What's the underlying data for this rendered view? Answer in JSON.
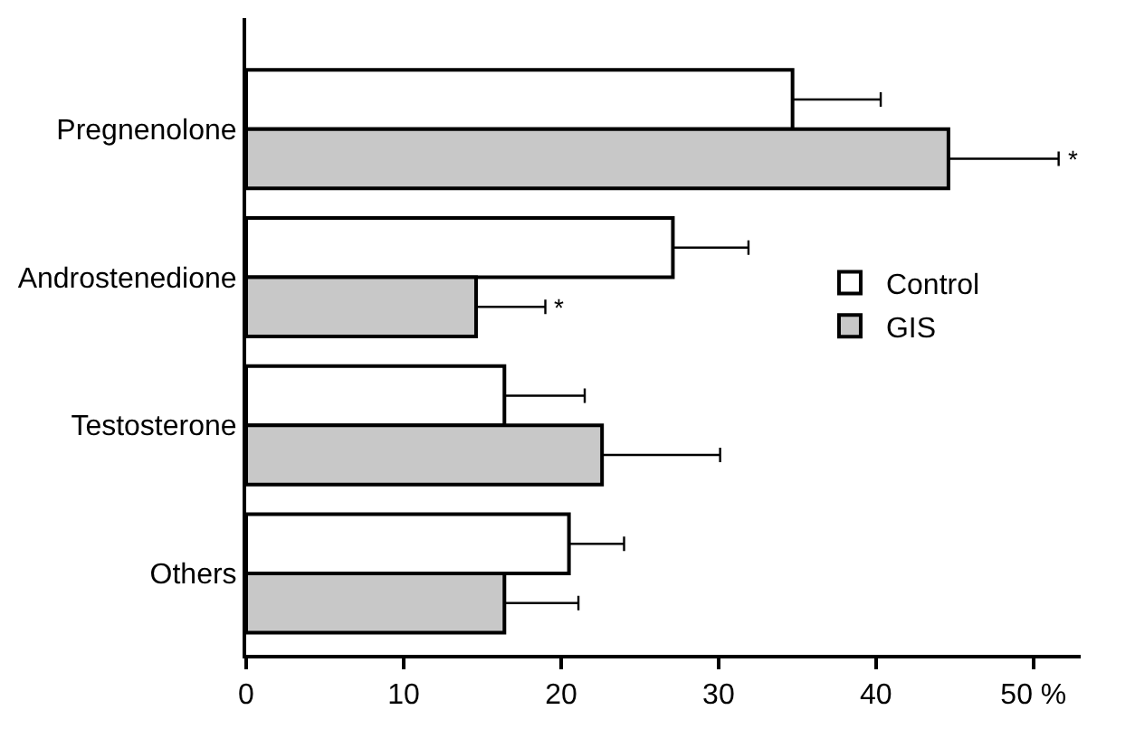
{
  "chart_data": {
    "type": "bar",
    "orientation": "horizontal",
    "categories": [
      "Pregnenolone",
      "Androstenedione",
      "Testosterone",
      "Others"
    ],
    "series": [
      {
        "name": "Control",
        "color": "#ffffff",
        "values": [
          34.7,
          27.1,
          16.4,
          20.5
        ],
        "errors": [
          [
            34.7,
            40.3
          ],
          [
            27.1,
            31.9
          ],
          [
            16.4,
            21.5
          ],
          [
            20.5,
            24.0
          ]
        ]
      },
      {
        "name": "GIS",
        "color": "#c8c8c8",
        "values": [
          44.6,
          14.6,
          22.6,
          16.4
        ],
        "errors": [
          [
            44.6,
            51.6
          ],
          [
            14.6,
            19.0
          ],
          [
            22.6,
            30.1
          ],
          [
            16.4,
            21.1
          ]
        ]
      }
    ],
    "xlim": [
      0,
      53
    ],
    "xticks": [
      0,
      10,
      20,
      30,
      40,
      {
        "value": 50,
        "label": "50 %"
      }
    ],
    "annotations": [
      "*",
      "*"
    ],
    "legend": "right"
  }
}
